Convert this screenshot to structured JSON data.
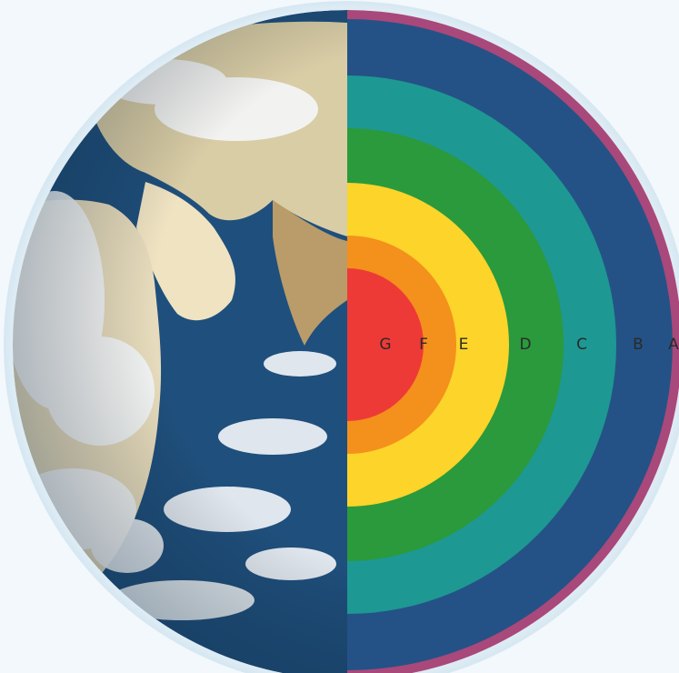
{
  "diagram": {
    "layers": [
      {
        "label": "A",
        "color": "#a9487a"
      },
      {
        "label": "B",
        "color": "#245286"
      },
      {
        "label": "C",
        "color": "#1e9893"
      },
      {
        "label": "D",
        "color": "#2a9a3c"
      },
      {
        "label": "E",
        "color": "#fcd42a"
      },
      {
        "label": "F",
        "color": "#f4901c"
      },
      {
        "label": "G",
        "color": "#ee3a36"
      }
    ],
    "colors": {
      "background": "#f2f8fc",
      "ocean": "#1f4f7c",
      "land": "#e8dcc0",
      "cloud": "#f4f7fa"
    }
  }
}
